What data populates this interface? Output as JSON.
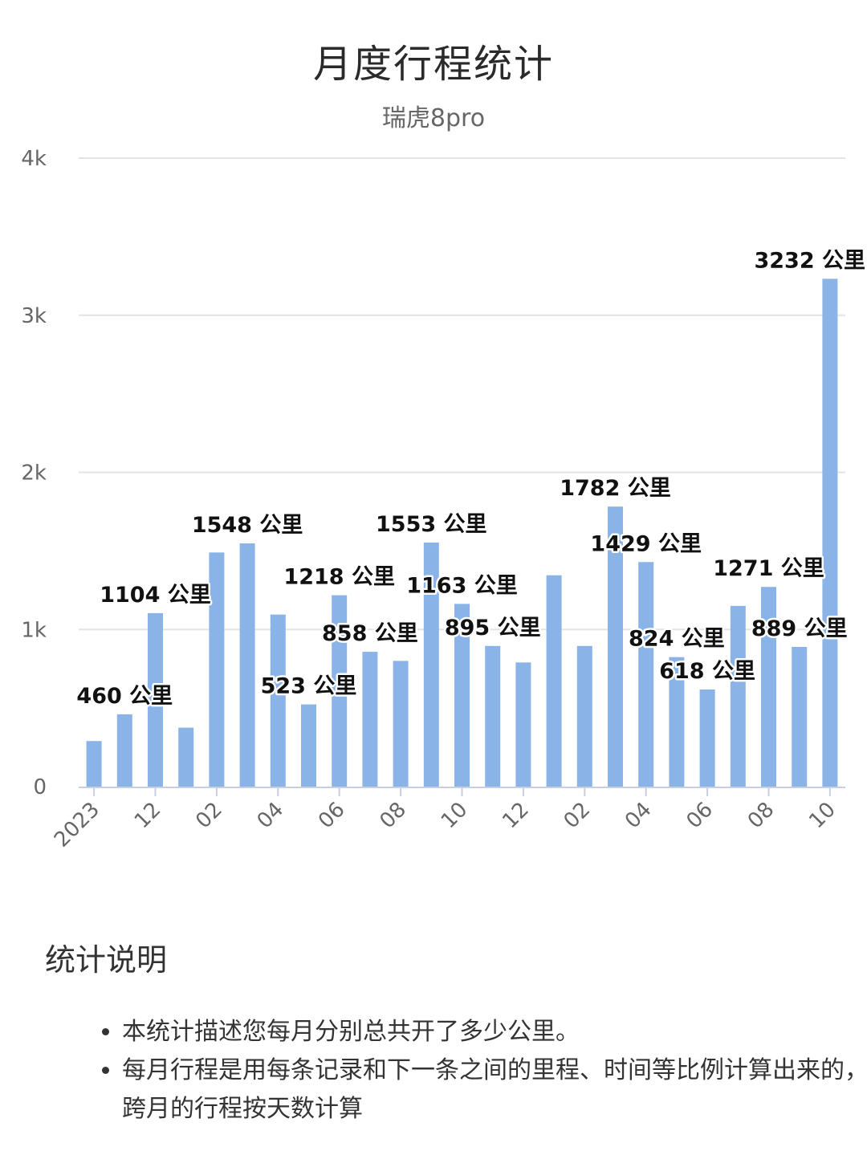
{
  "title": "月度行程统计",
  "subtitle": "瑞虎8pro",
  "notes": {
    "heading": "统计说明",
    "items": [
      "本统计描述您每月分别总共开了多少公里。",
      "每月行程是用每条记录和下一条之间的里程、时间等比例计算出来的，跨月的行程按天数计算"
    ]
  },
  "chart_data": {
    "type": "bar",
    "title": "月度行程统计",
    "subtitle": "瑞虎8pro",
    "color": "#8ab4e8",
    "unit": "公里",
    "categories": [
      "2023-10",
      "2023-11",
      "2023-12",
      "2024-01",
      "2024-02",
      "2024-03",
      "2024-04",
      "2024-05",
      "2024-06",
      "2024-07",
      "2024-08",
      "2024-09",
      "2024-10",
      "2024-11",
      "2024-12",
      "2025-01",
      "2025-02",
      "2025-03",
      "2025-04",
      "2025-05",
      "2025-06",
      "2025-07",
      "2025-08",
      "2025-09",
      "2025-10"
    ],
    "values": [
      290,
      460,
      1104,
      375,
      1490,
      1548,
      1095,
      523,
      1218,
      858,
      800,
      1553,
      1163,
      895,
      790,
      1345,
      895,
      1782,
      1429,
      824,
      618,
      1150,
      1271,
      889,
      3232
    ],
    "data_labels": [
      {
        "index": 1,
        "text": "460 公里"
      },
      {
        "index": 2,
        "text": "1104 公里"
      },
      {
        "index": 5,
        "text": "1548 公里"
      },
      {
        "index": 7,
        "text": "523 公里"
      },
      {
        "index": 8,
        "text": "1218 公里"
      },
      {
        "index": 9,
        "text": "858 公里"
      },
      {
        "index": 11,
        "text": "1553 公里"
      },
      {
        "index": 12,
        "text": "1163 公里"
      },
      {
        "index": 13,
        "text": "895 公里"
      },
      {
        "index": 17,
        "text": "1782 公里"
      },
      {
        "index": 18,
        "text": "1429 公里"
      },
      {
        "index": 19,
        "text": "824 公里"
      },
      {
        "index": 20,
        "text": "618 公里"
      },
      {
        "index": 22,
        "text": "1271 公里"
      },
      {
        "index": 23,
        "text": "889 公里"
      },
      {
        "index": 24,
        "text": "3232 公里"
      }
    ],
    "x_tick_labels": [
      {
        "index": 0,
        "text": "2023"
      },
      {
        "index": 2,
        "text": "12"
      },
      {
        "index": 4,
        "text": "02"
      },
      {
        "index": 6,
        "text": "04"
      },
      {
        "index": 8,
        "text": "06"
      },
      {
        "index": 10,
        "text": "08"
      },
      {
        "index": 12,
        "text": "10"
      },
      {
        "index": 14,
        "text": "12"
      },
      {
        "index": 16,
        "text": "02"
      },
      {
        "index": 18,
        "text": "04"
      },
      {
        "index": 20,
        "text": "06"
      },
      {
        "index": 22,
        "text": "08"
      },
      {
        "index": 24,
        "text": "10"
      }
    ],
    "y_ticks": [
      {
        "value": 0,
        "text": "0"
      },
      {
        "value": 1000,
        "text": "1k"
      },
      {
        "value": 2000,
        "text": "2k"
      },
      {
        "value": 3000,
        "text": "3k"
      },
      {
        "value": 4000,
        "text": "4k"
      }
    ],
    "ylim": [
      0,
      4000
    ],
    "grid": true,
    "legend": "none"
  }
}
